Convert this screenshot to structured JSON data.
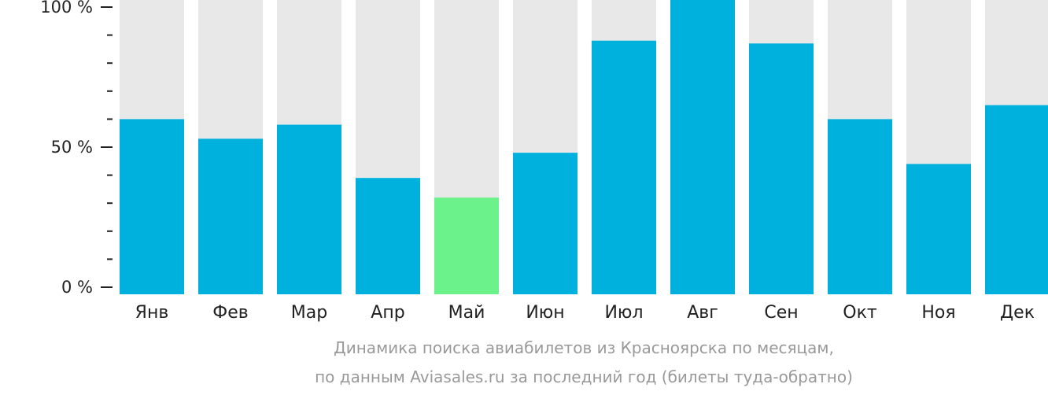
{
  "chart_data": {
    "type": "bar",
    "title": "Динамика поиска авиабилетов из Красноярска по месяцам,",
    "subtitle": "по данным Aviasales.ru за последний год (билеты туда-обратно)",
    "categories": [
      "Янв",
      "Фев",
      "Мар",
      "Апр",
      "Май",
      "Июн",
      "Июл",
      "Авг",
      "Сен",
      "Окт",
      "Ноя",
      "Дек"
    ],
    "values": [
      60,
      53,
      58,
      39,
      32,
      48,
      88,
      100,
      87,
      60,
      44,
      65
    ],
    "highlight_index": 4,
    "ylim": [
      0,
      100
    ],
    "yticks": [
      {
        "v": 0,
        "label": "0 %"
      },
      {
        "v": 50,
        "label": "50 %"
      },
      {
        "v": 100,
        "label": "100 %"
      }
    ],
    "minor_tick_step": 10,
    "colors": {
      "bar": "#00b1dd",
      "highlight": "#6cf28a",
      "background": "#e8e8e8",
      "axis": "#222222"
    }
  }
}
